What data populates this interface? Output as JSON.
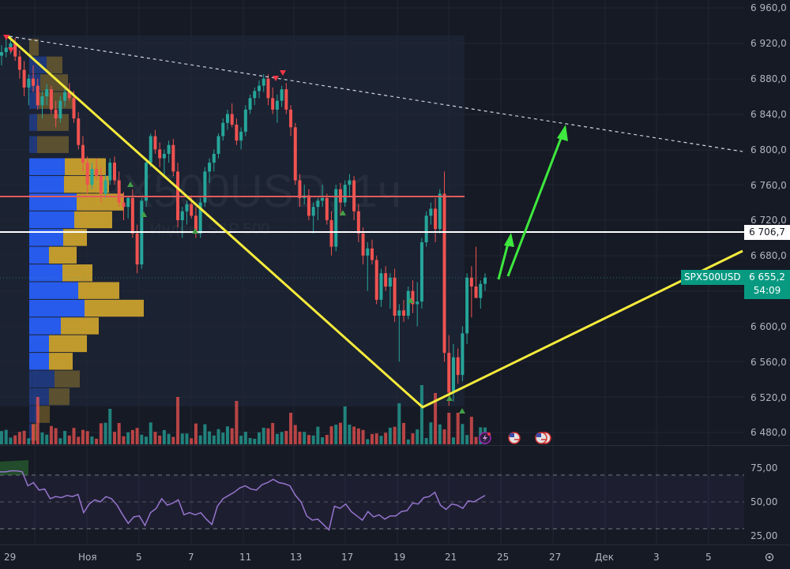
{
  "symbol": {
    "ticker": "SPX500USD",
    "interval": "1ч",
    "description": "Индекс S&P 500",
    "watermark": "SPX500USD, 1ч"
  },
  "price_axis": {
    "labels": [
      "6 960,0",
      "6 920,0",
      "6 880,0",
      "6 840,0",
      "6 800,0",
      "6 760,0",
      "6 720,0",
      "6 680,0",
      "6 600,0",
      "6 560,0",
      "6 520,0",
      "6 480,0"
    ],
    "horizontal_line_label": "6 706,7",
    "last_price_label": "6 655,2",
    "countdown": "54:09",
    "symbol_tag": "SPX500USD"
  },
  "rsi_axis": {
    "labels": [
      "75,00",
      "50,00",
      "25,00"
    ]
  },
  "time_axis": {
    "labels": [
      "29",
      "Ноя",
      "5",
      "7",
      "11",
      "13",
      "17",
      "19",
      "21",
      "25",
      "27",
      "Дек",
      "3",
      "5"
    ]
  },
  "icons": {
    "settings": "settings-icon",
    "events": [
      "flash-event-icon",
      "us-flag-event-icon",
      "us-flag-event-icon"
    ]
  },
  "colors": {
    "background": "#161a25",
    "up": "#26a69a",
    "down": "#ef5350",
    "trend_yellow": "#f5eb3c",
    "arrow_green": "#3ee83e",
    "hline_white": "#ffffff",
    "hline_red": "#e35b5b",
    "rsi_line": "#9575cd",
    "vp_up": "#2962ff",
    "vp_down": "#d4a72c"
  },
  "chart_data": {
    "type": "candlestick",
    "title": "SPX500USD, 1ч — Индекс S&P 500",
    "ylabel": "Price",
    "ylim": [
      6460,
      6975
    ],
    "x_tick_labels": [
      "29",
      "Ноя",
      "5",
      "7",
      "11",
      "13",
      "17",
      "19",
      "21",
      "25",
      "27",
      "Дек",
      "3",
      "5"
    ],
    "last_price": 6655.2,
    "horizontal_levels": [
      {
        "price": 6706.7,
        "color": "white"
      },
      {
        "price": 6745,
        "color": "red",
        "range": "Oct29–Nov21"
      }
    ],
    "trendlines": [
      {
        "type": "dashed-resistance",
        "from": [
          12,
          6928
        ],
        "to": [
          940,
          6797
        ]
      },
      {
        "type": "yellow-V",
        "points": [
          [
            10,
            6928
          ],
          [
            535,
            6507
          ],
          [
            940,
            6683
          ]
        ]
      }
    ],
    "arrows": [
      {
        "from": [
          632,
          6652
        ],
        "to": [
          645,
          6712
        ]
      },
      {
        "from": [
          645,
          6652
        ],
        "to": [
          715,
          6830
        ]
      }
    ],
    "candles_ohlc_approx": [
      [
        6906,
        6918,
        6895,
        6910
      ],
      [
        6910,
        6925,
        6904,
        6915
      ],
      [
        6915,
        6928,
        6908,
        6920
      ],
      [
        6920,
        6926,
        6900,
        6905
      ],
      [
        6905,
        6912,
        6880,
        6890
      ],
      [
        6890,
        6900,
        6860,
        6870
      ],
      [
        6870,
        6885,
        6850,
        6880
      ],
      [
        6880,
        6895,
        6865,
        6872
      ],
      [
        6872,
        6880,
        6845,
        6850
      ],
      [
        6850,
        6866,
        6835,
        6860
      ],
      [
        6860,
        6874,
        6850,
        6868
      ],
      [
        6868,
        6872,
        6840,
        6845
      ],
      [
        6845,
        6855,
        6825,
        6835
      ],
      [
        6835,
        6860,
        6830,
        6855
      ],
      [
        6855,
        6872,
        6848,
        6865
      ],
      [
        6865,
        6875,
        6855,
        6858
      ],
      [
        6858,
        6866,
        6830,
        6835
      ],
      [
        6835,
        6842,
        6800,
        6805
      ],
      [
        6805,
        6815,
        6775,
        6785
      ],
      [
        6785,
        6792,
        6750,
        6760
      ],
      [
        6760,
        6785,
        6755,
        6778
      ],
      [
        6778,
        6790,
        6765,
        6770
      ],
      [
        6770,
        6780,
        6740,
        6750
      ],
      [
        6750,
        6772,
        6745,
        6765
      ],
      [
        6765,
        6790,
        6760,
        6785
      ],
      [
        6785,
        6792,
        6760,
        6765
      ],
      [
        6765,
        6775,
        6735,
        6740
      ],
      [
        6740,
        6752,
        6720,
        6735
      ],
      [
        6735,
        6748,
        6722,
        6745
      ],
      [
        6745,
        6755,
        6700,
        6705
      ],
      [
        6705,
        6715,
        6660,
        6670
      ],
      [
        6670,
        6745,
        6665,
        6742
      ],
      [
        6742,
        6790,
        6735,
        6785
      ],
      [
        6785,
        6818,
        6780,
        6815
      ],
      [
        6815,
        6822,
        6795,
        6800
      ],
      [
        6800,
        6808,
        6780,
        6790
      ],
      [
        6790,
        6800,
        6768,
        6795
      ],
      [
        6795,
        6810,
        6785,
        6805
      ],
      [
        6805,
        6812,
        6770,
        6775
      ],
      [
        6775,
        6785,
        6712,
        6720
      ],
      [
        6720,
        6735,
        6700,
        6730
      ],
      [
        6730,
        6742,
        6715,
        6738
      ],
      [
        6738,
        6748,
        6722,
        6725
      ],
      [
        6725,
        6735,
        6700,
        6705
      ],
      [
        6705,
        6745,
        6700,
        6740
      ],
      [
        6740,
        6780,
        6735,
        6775
      ],
      [
        6775,
        6790,
        6762,
        6785
      ],
      [
        6785,
        6800,
        6775,
        6795
      ],
      [
        6795,
        6818,
        6790,
        6815
      ],
      [
        6815,
        6835,
        6810,
        6830
      ],
      [
        6830,
        6845,
        6822,
        6840
      ],
      [
        6840,
        6852,
        6825,
        6828
      ],
      [
        6828,
        6835,
        6805,
        6810
      ],
      [
        6810,
        6825,
        6800,
        6820
      ],
      [
        6820,
        6850,
        6815,
        6845
      ],
      [
        6845,
        6862,
        6840,
        6858
      ],
      [
        6858,
        6870,
        6850,
        6866
      ],
      [
        6866,
        6878,
        6858,
        6872
      ],
      [
        6872,
        6885,
        6865,
        6880
      ],
      [
        6880,
        6885,
        6850,
        6858
      ],
      [
        6858,
        6870,
        6840,
        6845
      ],
      [
        6845,
        6862,
        6830,
        6855
      ],
      [
        6855,
        6872,
        6848,
        6868
      ],
      [
        6868,
        6875,
        6840,
        6845
      ],
      [
        6845,
        6850,
        6815,
        6825
      ],
      [
        6825,
        6830,
        6760,
        6765
      ],
      [
        6765,
        6772,
        6735,
        6745
      ],
      [
        6745,
        6760,
        6738,
        6748
      ],
      [
        6748,
        6755,
        6720,
        6725
      ],
      [
        6725,
        6740,
        6705,
        6735
      ],
      [
        6735,
        6745,
        6720,
        6742
      ],
      [
        6742,
        6760,
        6735,
        6745
      ],
      [
        6745,
        6750,
        6715,
        6720
      ],
      [
        6720,
        6730,
        6680,
        6690
      ],
      [
        6690,
        6760,
        6685,
        6755
      ],
      [
        6755,
        6762,
        6725,
        6740
      ],
      [
        6740,
        6765,
        6735,
        6760
      ],
      [
        6760,
        6772,
        6748,
        6765
      ],
      [
        6765,
        6770,
        6720,
        6730
      ],
      [
        6730,
        6738,
        6695,
        6705
      ],
      [
        6705,
        6712,
        6670,
        6680
      ],
      [
        6680,
        6695,
        6640,
        6688
      ],
      [
        6688,
        6698,
        6670,
        6675
      ],
      [
        6675,
        6680,
        6625,
        6630
      ],
      [
        6630,
        6665,
        6622,
        6660
      ],
      [
        6660,
        6668,
        6640,
        6645
      ],
      [
        6645,
        6660,
        6620,
        6655
      ],
      [
        6655,
        6665,
        6605,
        6612
      ],
      [
        6612,
        6625,
        6560,
        6618
      ],
      [
        6618,
        6630,
        6605,
        6612
      ],
      [
        6612,
        6645,
        6608,
        6640
      ],
      [
        6640,
        6652,
        6615,
        6625
      ],
      [
        6625,
        6650,
        6600,
        6628
      ],
      [
        6628,
        6700,
        6620,
        6695
      ],
      [
        6695,
        6730,
        6690,
        6725
      ],
      [
        6725,
        6740,
        6715,
        6733
      ],
      [
        6733,
        6745,
        6695,
        6710
      ],
      [
        6710,
        6755,
        6705,
        6750
      ],
      [
        6750,
        6775,
        6560,
        6570
      ],
      [
        6570,
        6590,
        6510,
        6525
      ],
      [
        6525,
        6580,
        6515,
        6565
      ],
      [
        6565,
        6575,
        6535,
        6545
      ],
      [
        6545,
        6600,
        6538,
        6592
      ],
      [
        6592,
        6660,
        6580,
        6655
      ],
      [
        6655,
        6668,
        6610,
        6645
      ],
      [
        6645,
        6690,
        6640,
        6632
      ],
      [
        6632,
        6652,
        6620,
        6648
      ],
      [
        6648,
        6660,
        6640,
        6655
      ]
    ],
    "rsi": {
      "levels": [
        70,
        50,
        30
      ],
      "ylim": [
        20,
        80
      ],
      "tick_labels": [
        "75,00",
        "50,00",
        "25,00"
      ],
      "values_approx": [
        78,
        78,
        79,
        79,
        78,
        65,
        68,
        61,
        62,
        53,
        55,
        54,
        56,
        55,
        57,
        40,
        48,
        52,
        50,
        55,
        53,
        47,
        38,
        30,
        36,
        37,
        28,
        40,
        44,
        53,
        47,
        49,
        52,
        38,
        40,
        38,
        40,
        34,
        29,
        46,
        53,
        56,
        59,
        63,
        65,
        62,
        61,
        66,
        68,
        71,
        68,
        67,
        65,
        56,
        50,
        37,
        33,
        34,
        29,
        24,
        46,
        44,
        48,
        41,
        37,
        33,
        41,
        36,
        38,
        34,
        37,
        37,
        41,
        42,
        49,
        48,
        54,
        55,
        59,
        47,
        43,
        48,
        47,
        44,
        51,
        50,
        53,
        56
      ]
    },
    "volume": "histogram of hourly volume, colored by candle direction"
  }
}
